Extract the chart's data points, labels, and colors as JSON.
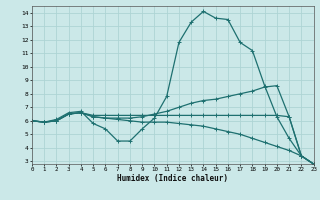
{
  "xlabel": "Humidex (Indice chaleur)",
  "background_color": "#cbe8e8",
  "grid_color": "#aed4d4",
  "line_color": "#1e7070",
  "lines": [
    {
      "x": [
        0,
        1,
        2,
        3,
        4,
        5,
        6,
        7,
        8,
        9,
        10,
        11,
        12,
        13,
        14,
        15,
        16,
        17,
        18,
        19,
        20,
        21,
        22,
        23
      ],
      "y": [
        6.0,
        5.9,
        6.1,
        6.6,
        6.7,
        5.8,
        5.4,
        4.5,
        4.5,
        5.4,
        6.2,
        7.8,
        11.8,
        13.3,
        14.1,
        13.6,
        13.5,
        11.8,
        11.2,
        8.6,
        6.3,
        4.7,
        3.4,
        2.8
      ]
    },
    {
      "x": [
        0,
        1,
        2,
        3,
        4,
        5,
        6,
        7,
        8,
        9,
        10,
        11,
        12,
        13,
        14,
        15,
        16,
        17,
        18,
        19,
        20,
        21,
        22,
        23
      ],
      "y": [
        6.0,
        5.9,
        6.0,
        6.5,
        6.6,
        6.3,
        6.2,
        6.2,
        6.2,
        6.3,
        6.5,
        6.7,
        7.0,
        7.3,
        7.5,
        7.6,
        7.8,
        8.0,
        8.2,
        8.5,
        8.6,
        6.3,
        3.4,
        2.8
      ]
    },
    {
      "x": [
        0,
        1,
        2,
        3,
        4,
        5,
        6,
        7,
        8,
        9,
        10,
        11,
        12,
        13,
        14,
        15,
        16,
        17,
        18,
        19,
        20,
        21,
        22,
        23
      ],
      "y": [
        6.0,
        5.9,
        6.0,
        6.5,
        6.6,
        6.3,
        6.2,
        6.1,
        6.0,
        5.9,
        5.9,
        5.9,
        5.8,
        5.7,
        5.6,
        5.4,
        5.2,
        5.0,
        4.7,
        4.4,
        4.1,
        3.8,
        3.4,
        2.8
      ]
    },
    {
      "x": [
        0,
        1,
        2,
        3,
        4,
        5,
        6,
        7,
        8,
        9,
        10,
        11,
        12,
        13,
        14,
        15,
        16,
        17,
        18,
        19,
        20,
        21,
        22,
        23
      ],
      "y": [
        6.0,
        5.9,
        6.0,
        6.5,
        6.6,
        6.4,
        6.4,
        6.4,
        6.4,
        6.4,
        6.4,
        6.4,
        6.4,
        6.4,
        6.4,
        6.4,
        6.4,
        6.4,
        6.4,
        6.4,
        6.4,
        6.3,
        3.4,
        2.8
      ]
    }
  ],
  "xlim": [
    0,
    23
  ],
  "ylim": [
    2.8,
    14.5
  ],
  "yticks": [
    3,
    4,
    5,
    6,
    7,
    8,
    9,
    10,
    11,
    12,
    13,
    14
  ],
  "xticks": [
    0,
    1,
    2,
    3,
    4,
    5,
    6,
    7,
    8,
    9,
    10,
    11,
    12,
    13,
    14,
    15,
    16,
    17,
    18,
    19,
    20,
    21,
    22,
    23
  ],
  "marker": "+",
  "markersize": 3,
  "linewidth": 0.9
}
